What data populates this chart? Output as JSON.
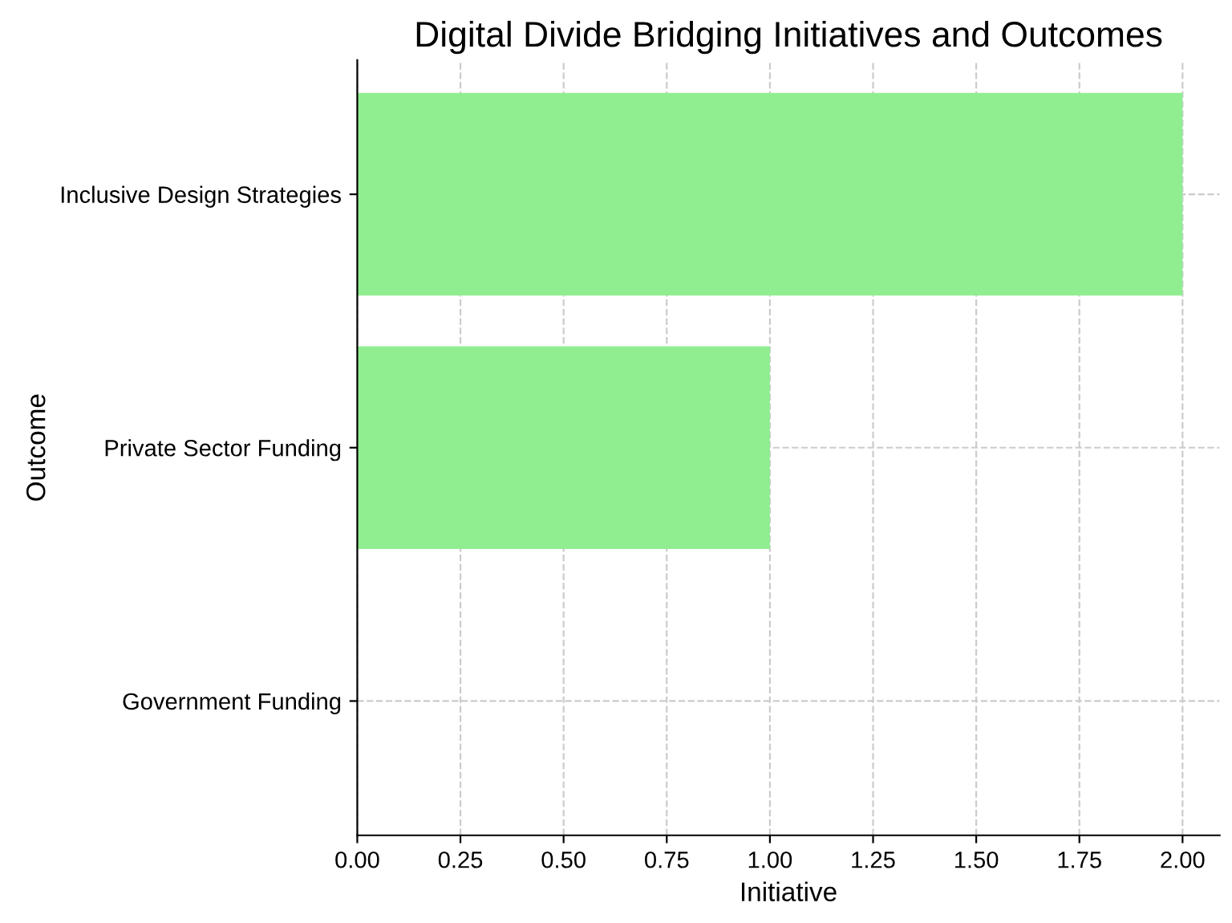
{
  "chart_data": {
    "type": "bar",
    "orientation": "horizontal",
    "title": "Digital Divide Bridging Initiatives and Outcomes",
    "xlabel": "Initiative",
    "ylabel": "Outcome",
    "categories": [
      "Inclusive Design Strategies",
      "Private Sector Funding",
      "Government Funding"
    ],
    "values": [
      2,
      1,
      0
    ],
    "color": "#90ee90",
    "xlim": [
      0,
      2.09
    ],
    "xticks": [
      {
        "value": 0,
        "label": "0.00"
      },
      {
        "value": 0.25,
        "label": "0.25"
      },
      {
        "value": 0.5,
        "label": "0.50"
      },
      {
        "value": 0.75,
        "label": "0.75"
      },
      {
        "value": 1,
        "label": "1.00"
      },
      {
        "value": 1.25,
        "label": "1.25"
      },
      {
        "value": 1.5,
        "label": "1.50"
      },
      {
        "value": 1.75,
        "label": "1.75"
      },
      {
        "value": 2,
        "label": "2.00"
      }
    ],
    "grid": true,
    "line_style": "dashed"
  }
}
